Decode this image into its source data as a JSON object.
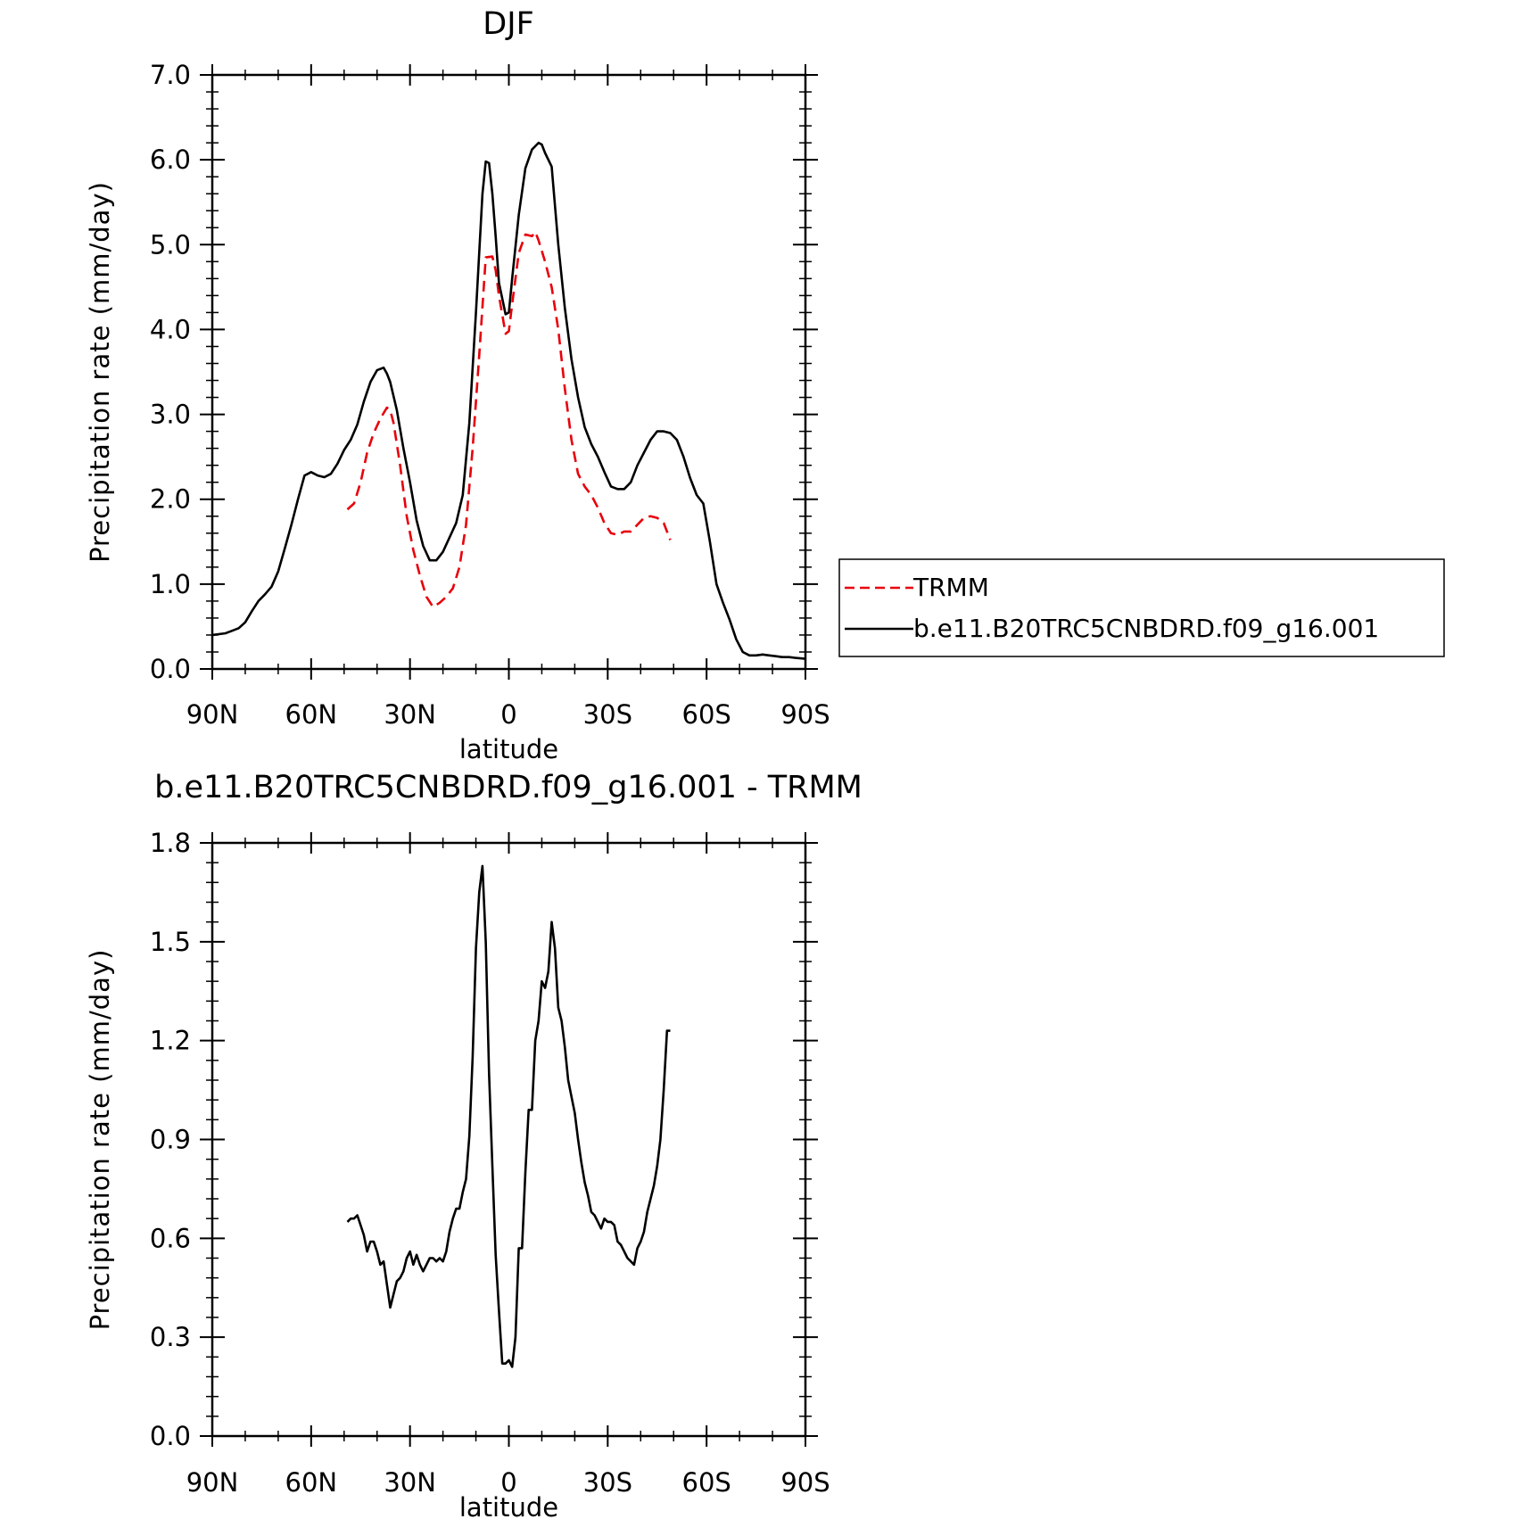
{
  "chart_data": [
    {
      "type": "line",
      "title": "DJF",
      "xlabel": "latitude",
      "ylabel": "Precipitation rate (mm/day)",
      "xlim": [
        -90,
        90
      ],
      "ylim": [
        0,
        7
      ],
      "x_ticks": [
        -90,
        -60,
        -30,
        0,
        30,
        60,
        90
      ],
      "x_tick_labels": [
        "90N",
        "60N",
        "30N",
        "0",
        "30S",
        "60S",
        "90S"
      ],
      "y_ticks": [
        0,
        1,
        2,
        3,
        4,
        5,
        6,
        7
      ],
      "y_tick_labels": [
        "0.0",
        "1.0",
        "2.0",
        "3.0",
        "4.0",
        "5.0",
        "6.0",
        "7.0"
      ],
      "legend_position": "right",
      "series": [
        {
          "name": "TRMM",
          "color": "#e8000b",
          "dash": "dashed",
          "x": [
            -49,
            -47,
            -45,
            -43,
            -41,
            -39,
            -37,
            -36,
            -35,
            -33,
            -31,
            -29,
            -27,
            -25,
            -23,
            -21,
            -19,
            -17,
            -15,
            -13,
            -11,
            -9,
            -7,
            -5,
            -4,
            -3,
            -1,
            0,
            1,
            3,
            5,
            7,
            8,
            9,
            11,
            13,
            15,
            17,
            19,
            21,
            23,
            25,
            27,
            29,
            31,
            33,
            35,
            37,
            39,
            41,
            43,
            45,
            47,
            49
          ],
          "y": [
            1.88,
            1.95,
            2.2,
            2.55,
            2.78,
            2.95,
            3.08,
            3.05,
            2.9,
            2.4,
            1.8,
            1.4,
            1.1,
            0.85,
            0.73,
            0.78,
            0.85,
            0.95,
            1.2,
            1.7,
            2.6,
            3.7,
            4.85,
            4.86,
            4.7,
            4.4,
            3.95,
            3.98,
            4.3,
            4.9,
            5.12,
            5.1,
            5.15,
            5.05,
            4.8,
            4.5,
            4.0,
            3.3,
            2.7,
            2.3,
            2.15,
            2.05,
            1.9,
            1.72,
            1.6,
            1.58,
            1.62,
            1.62,
            1.7,
            1.78,
            1.8,
            1.78,
            1.72,
            1.52
          ]
        },
        {
          "name": "b.e11.B20TRC5CNBDRD.f09_g16.001",
          "color": "#000000",
          "dash": "solid",
          "x": [
            -90,
            -86,
            -84,
            -82,
            -80,
            -78,
            -76,
            -74,
            -72,
            -70,
            -68,
            -66,
            -64,
            -62,
            -60,
            -59,
            -58,
            -56,
            -54,
            -52,
            -50,
            -48,
            -46,
            -44,
            -42,
            -40,
            -38,
            -37,
            -36,
            -34,
            -32,
            -30,
            -28,
            -26,
            -24,
            -22,
            -20,
            -18,
            -16,
            -14,
            -12,
            -10,
            -8,
            -7,
            -6,
            -5,
            -4,
            -3,
            -1,
            0,
            1,
            3,
            5,
            7,
            9,
            10,
            11,
            13,
            15,
            17,
            19,
            21,
            23,
            25,
            27,
            29,
            31,
            33,
            35,
            37,
            39,
            41,
            43,
            45,
            47,
            49,
            51,
            53,
            55,
            57,
            59,
            61,
            63,
            65,
            67,
            69,
            71,
            73,
            75,
            77,
            79,
            81,
            83,
            85,
            87,
            90
          ],
          "y": [
            0.4,
            0.42,
            0.45,
            0.48,
            0.55,
            0.68,
            0.8,
            0.88,
            0.97,
            1.15,
            1.42,
            1.7,
            2.0,
            2.28,
            2.32,
            2.3,
            2.28,
            2.26,
            2.3,
            2.42,
            2.58,
            2.7,
            2.88,
            3.15,
            3.38,
            3.52,
            3.55,
            3.48,
            3.38,
            3.05,
            2.6,
            2.2,
            1.75,
            1.45,
            1.28,
            1.28,
            1.38,
            1.55,
            1.72,
            2.05,
            2.9,
            4.2,
            5.6,
            5.98,
            5.96,
            5.6,
            5.1,
            4.55,
            4.18,
            4.2,
            4.6,
            5.35,
            5.9,
            6.12,
            6.2,
            6.18,
            6.08,
            5.92,
            5.0,
            4.25,
            3.65,
            3.2,
            2.85,
            2.65,
            2.5,
            2.32,
            2.15,
            2.12,
            2.12,
            2.2,
            2.4,
            2.55,
            2.7,
            2.8,
            2.8,
            2.78,
            2.7,
            2.5,
            2.25,
            2.05,
            1.95,
            1.5,
            1.0,
            0.78,
            0.58,
            0.35,
            0.2,
            0.16,
            0.16,
            0.17,
            0.16,
            0.15,
            0.14,
            0.14,
            0.13,
            0.12
          ]
        }
      ]
    },
    {
      "type": "line",
      "title": "b.e11.B20TRC5CNBDRD.f09_g16.001 - TRMM",
      "xlabel": "latitude",
      "ylabel": "Precipitation rate (mm/day)",
      "xlim": [
        -90,
        90
      ],
      "ylim": [
        0,
        1.8
      ],
      "x_ticks": [
        -90,
        -60,
        -30,
        0,
        30,
        60,
        90
      ],
      "x_tick_labels": [
        "90N",
        "60N",
        "30N",
        "0",
        "30S",
        "60S",
        "90S"
      ],
      "y_ticks": [
        0,
        0.3,
        0.6,
        0.9,
        1.2,
        1.5,
        1.8
      ],
      "y_tick_labels": [
        "0.0",
        "0.3",
        "0.6",
        "0.9",
        "1.2",
        "1.5",
        "1.8"
      ],
      "series": [
        {
          "color": "#000000",
          "dash": "solid",
          "x": [
            -49,
            -48,
            -47,
            -46,
            -45,
            -44,
            -43,
            -42,
            -41,
            -40,
            -39,
            -38,
            -37,
            -36,
            -35,
            -34,
            -33,
            -32,
            -31,
            -30,
            -29,
            -28,
            -27,
            -26,
            -25,
            -24,
            -23,
            -22,
            -21,
            -20,
            -19,
            -18,
            -17,
            -16,
            -15,
            -14,
            -13,
            -12,
            -11,
            -10,
            -9,
            -8,
            -7,
            -6,
            -5,
            -4,
            -3,
            -2,
            -1,
            0,
            1,
            2,
            3,
            4,
            5,
            6,
            7,
            8,
            9,
            10,
            11,
            12,
            13,
            14,
            15,
            16,
            17,
            18,
            19,
            20,
            21,
            22,
            23,
            24,
            25,
            26,
            27,
            28,
            29,
            30,
            31,
            32,
            33,
            34,
            35,
            36,
            37,
            38,
            39,
            40,
            41,
            42,
            43,
            44,
            45,
            46,
            47,
            48,
            49
          ],
          "y": [
            0.65,
            0.66,
            0.66,
            0.67,
            0.64,
            0.61,
            0.56,
            0.59,
            0.59,
            0.56,
            0.52,
            0.53,
            0.46,
            0.39,
            0.43,
            0.47,
            0.48,
            0.5,
            0.54,
            0.56,
            0.52,
            0.55,
            0.52,
            0.5,
            0.52,
            0.54,
            0.54,
            0.53,
            0.54,
            0.53,
            0.56,
            0.62,
            0.66,
            0.69,
            0.69,
            0.74,
            0.78,
            0.91,
            1.15,
            1.48,
            1.65,
            1.73,
            1.5,
            1.1,
            0.82,
            0.55,
            0.38,
            0.22,
            0.22,
            0.23,
            0.21,
            0.3,
            0.57,
            0.57,
            0.8,
            0.99,
            0.99,
            1.2,
            1.26,
            1.38,
            1.36,
            1.41,
            1.56,
            1.48,
            1.3,
            1.26,
            1.18,
            1.08,
            1.03,
            0.98,
            0.9,
            0.83,
            0.77,
            0.73,
            0.68,
            0.67,
            0.65,
            0.63,
            0.66,
            0.65,
            0.65,
            0.64,
            0.59,
            0.58,
            0.56,
            0.54,
            0.53,
            0.52,
            0.57,
            0.59,
            0.62,
            0.68,
            0.72,
            0.76,
            0.82,
            0.9,
            1.05,
            1.23,
            1.23
          ]
        }
      ]
    }
  ],
  "legend": {
    "items": [
      {
        "label": "TRMM"
      },
      {
        "label": "b.e11.B20TRC5CNBDRD.f09_g16.001"
      }
    ]
  }
}
